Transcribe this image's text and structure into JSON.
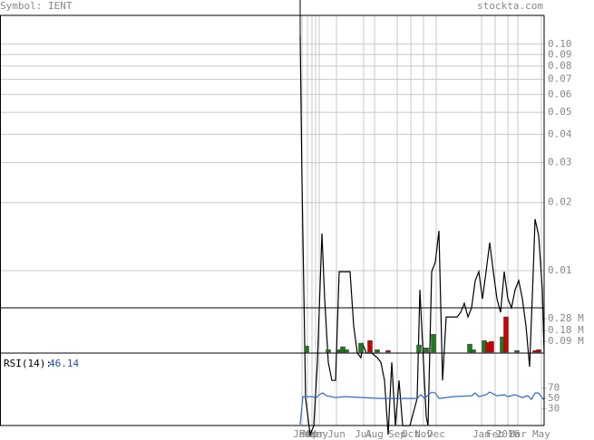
{
  "header": {
    "symbol": "Symbol: IENT",
    "site": "stockta.com"
  },
  "chart_data": [
    {
      "type": "line",
      "log_scale": true,
      "color": "#000000",
      "grid": true,
      "x": [
        0,
        2,
        6,
        11,
        15,
        19,
        24,
        27,
        31,
        35,
        39,
        43,
        55,
        59,
        63,
        67,
        69,
        73,
        79,
        85,
        89,
        93,
        97,
        101,
        105,
        109,
        113,
        121,
        125,
        129,
        132,
        135,
        139,
        141,
        145,
        149,
        153,
        157,
        161,
        173,
        177,
        181,
        185,
        189,
        193,
        197,
        201,
        205,
        209,
        213,
        217,
        221,
        225,
        229,
        233,
        237,
        241,
        245,
        249,
        253,
        257,
        259,
        263,
        267,
        269
      ],
      "values": [
        0.109,
        0.0249,
        0.00273,
        0.00189,
        0.00207,
        0.00394,
        0.0146,
        0.00752,
        0.00394,
        0.00328,
        0.00328,
        0.0099,
        0.0099,
        0.0057,
        0.00433,
        0.00413,
        0.00474,
        0.00433,
        0.00433,
        0.00413,
        0.00394,
        0.00328,
        0.00189,
        0.00394,
        0.00207,
        0.00328,
        0.00207,
        0.00207,
        0.00238,
        0.00273,
        0.00824,
        0.00474,
        0.00227,
        0.00207,
        0.0099,
        0.0109,
        0.015,
        0.00328,
        0.00625,
        0.00625,
        0.00655,
        0.00718,
        0.00625,
        0.00686,
        0.00904,
        0.0099,
        0.00752,
        0.0099,
        0.0133,
        0.0099,
        0.00752,
        0.00655,
        0.0099,
        0.00752,
        0.00686,
        0.00824,
        0.00904,
        0.00752,
        0.0057,
        0.00377,
        0.0099,
        0.0169,
        0.0143,
        0.00824,
        0.00433
      ],
      "xlim": [
        0,
        269
      ],
      "xticks": [
        {
          "value": 2,
          "label": "Jan"
        },
        {
          "value": 8,
          "label": "Feb"
        },
        {
          "value": 13,
          "label": "Mar"
        },
        {
          "value": 17,
          "label": "Apr"
        },
        {
          "value": 21,
          "label": "May"
        },
        {
          "value": 40,
          "label": "Jun"
        },
        {
          "value": 70,
          "label": "Jul"
        },
        {
          "value": 82,
          "label": "Aug"
        },
        {
          "value": 107,
          "label": "Sep"
        },
        {
          "value": 122,
          "label": "Oct"
        },
        {
          "value": 136,
          "label": "Nov"
        },
        {
          "value": 150,
          "label": "Dec"
        },
        {
          "value": 200,
          "label": "Jan"
        },
        {
          "value": 215,
          "label": "Feb"
        },
        {
          "value": 229,
          "label": "2016"
        },
        {
          "value": 240,
          "label": "Mar"
        },
        {
          "value": 266,
          "label": "May"
        }
      ],
      "ylim": [
        0.00686,
        0.134
      ],
      "yticks": [
        {
          "value": 0.1,
          "label": "0.10"
        },
        0.09,
        0.08,
        0.07,
        0.06,
        0.05,
        0.04,
        0.03,
        0.02,
        0.01
      ]
    },
    {
      "type": "bar",
      "grid": false,
      "x": [
        7,
        31,
        43,
        47,
        51,
        67,
        77,
        85,
        97,
        131,
        139,
        147,
        187,
        191,
        203,
        207,
        211,
        223,
        227,
        239,
        259,
        263
      ],
      "values": [
        0.05,
        0.02,
        0.02,
        0.045,
        0.02,
        0.075,
        0.097,
        0.02,
        0.014,
        0.06,
        0.036,
        0.15,
        0.067,
        0.02,
        0.097,
        0.082,
        0.09,
        0.128,
        0.295,
        0.014,
        0.014,
        0.02
      ],
      "colors": [
        "#1e7b1e",
        "#1e7b1e",
        "#1e7b1e",
        "#1e7b1e",
        "#1e7b1e",
        "#1e7b1e",
        "#cc0000",
        "#1e7b1e",
        "#cc0000",
        "#1e7b1e",
        "#1e7b1e",
        "#1e7b1e",
        "#1e7b1e",
        "#1e7b1e",
        "#1e7b1e",
        "#cc0000",
        "#cc0000",
        "#1e7b1e",
        "#cc0000",
        "#1e7b1e",
        "#cc0000",
        "#cc0000"
      ],
      "xlim": [
        0,
        269
      ],
      "ylim": [
        0,
        0.371
      ],
      "yticks": [
        {
          "value": 0.28,
          "label": "0.28 M"
        },
        {
          "value": 0.18,
          "label": "0.18 M"
        },
        {
          "value": 0.09,
          "label": "0.09 M"
        }
      ]
    },
    {
      "type": "line",
      "log_scale": false,
      "color": "#3366cc",
      "grid": false,
      "label": "RSI(14):",
      "last": 46.14,
      "x": [
        0,
        3,
        14,
        17,
        21,
        25,
        29,
        39,
        49,
        69,
        89,
        109,
        129,
        133,
        137,
        145,
        149,
        153,
        169,
        189,
        193,
        197,
        205,
        209,
        217,
        225,
        229,
        237,
        245,
        251,
        255,
        259,
        263,
        269
      ],
      "values": [
        0,
        53.5,
        53.5,
        50,
        57,
        60.4,
        55.2,
        51.7,
        53.5,
        51.7,
        50,
        50,
        50,
        57,
        50,
        62.2,
        60.4,
        50,
        53.5,
        55.2,
        60.4,
        53.5,
        57,
        62.2,
        55.2,
        57,
        53.5,
        57,
        51.7,
        55.2,
        48.3,
        60.4,
        60.4,
        46.1
      ],
      "xlim": [
        0,
        269
      ],
      "ylim": [
        -2,
        137
      ],
      "yticks": [
        70,
        50,
        30
      ]
    }
  ]
}
